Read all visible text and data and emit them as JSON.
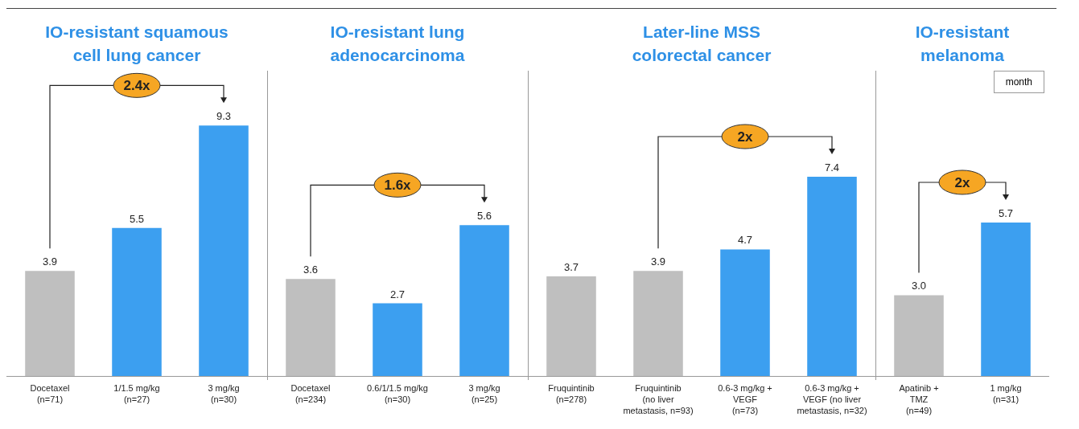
{
  "chart_data": [
    {
      "type": "bar",
      "title": "IO-resistant squamous\ncell lung cancer",
      "categories": [
        "Docetaxel\n(n=71)",
        "1/1.5 mg/kg\n(n=27)",
        "3 mg/kg\n(n=30)"
      ],
      "values": [
        3.9,
        5.5,
        9.3
      ],
      "colors": [
        "#bfbfbf",
        "#3c9ff0",
        "#3c9ff0"
      ],
      "value_labels": [
        "3.9",
        "5.5",
        "9.3"
      ],
      "annotations": [
        "2.4x"
      ]
    },
    {
      "type": "bar",
      "title": "IO-resistant lung\nadenocarcinoma",
      "categories": [
        "Docetaxel\n(n=234)",
        "0.6/1/1.5 mg/kg\n(n=30)",
        "3 mg/kg\n(n=25)"
      ],
      "values": [
        3.6,
        2.7,
        5.6
      ],
      "colors": [
        "#bfbfbf",
        "#3c9ff0",
        "#3c9ff0"
      ],
      "value_labels": [
        "3.6",
        "2.7",
        "5.6"
      ],
      "annotations": [
        "1.6x"
      ]
    },
    {
      "type": "bar",
      "title": "Later-line MSS\ncolorectal cancer",
      "categories": [
        "Fruquintinib\n(n=278)",
        "Fruquintinib\n(no liver\nmetastasis, n=93)",
        "0.6-3 mg/kg +\nVEGF\n(n=73)",
        "0.6-3 mg/kg +\nVEGF (no liver\nmetastasis, n=32)"
      ],
      "values": [
        3.7,
        3.9,
        4.7,
        7.4
      ],
      "colors": [
        "#bfbfbf",
        "#bfbfbf",
        "#3c9ff0",
        "#3c9ff0"
      ],
      "value_labels": [
        "3.7",
        "3.9",
        "4.7",
        "7.4"
      ],
      "annotations": [
        "2x"
      ]
    },
    {
      "type": "bar",
      "title": "IO-resistant\nmelanoma",
      "categories": [
        "Apatinib +\nTMZ\n(n=49)",
        "1 mg/kg\n(n=31)"
      ],
      "values": [
        3.0,
        5.7
      ],
      "colors": [
        "#bfbfbf",
        "#3c9ff0"
      ],
      "value_labels": [
        "3.0",
        "5.7"
      ],
      "annotations": [
        "2x",
        "month"
      ]
    }
  ]
}
